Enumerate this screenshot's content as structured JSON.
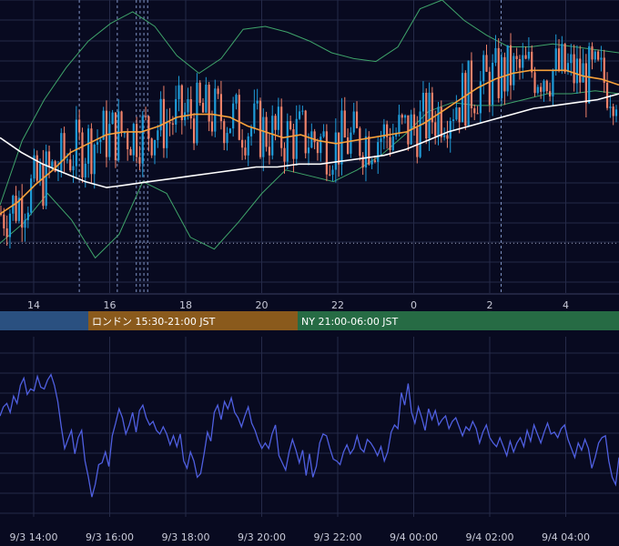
{
  "chart_data": [
    {
      "type": "line",
      "subtype": "candlestick",
      "title": "",
      "x_axis_ticks": [
        "14",
        "16",
        "18",
        "20",
        "22",
        "0",
        "2",
        "4"
      ],
      "grid": true,
      "colors": {
        "up": "#1e9bd8",
        "down": "#f0826a",
        "ma_short": "#f7a13a",
        "ma_long": "#ffffff",
        "bollinger": "#3fa46a",
        "background": "#080a20",
        "grid": "#252a48",
        "event_marker": "#7f93c4"
      },
      "series": [
        {
          "role": "ma_short",
          "values": [
            0.27,
            0.31,
            0.37,
            0.42,
            0.48,
            0.51,
            0.54,
            0.55,
            0.55,
            0.57,
            0.6,
            0.61,
            0.61,
            0.6,
            0.57,
            0.55,
            0.53,
            0.54,
            0.52,
            0.51,
            0.52,
            0.53,
            0.54,
            0.55,
            0.58,
            0.62,
            0.66,
            0.7,
            0.73,
            0.75,
            0.76,
            0.76,
            0.76,
            0.74,
            0.73,
            0.71
          ]
        },
        {
          "role": "ma_long",
          "values": [
            0.53,
            0.48,
            0.44,
            0.41,
            0.38,
            0.36,
            0.37,
            0.38,
            0.39,
            0.4,
            0.41,
            0.42,
            0.43,
            0.43,
            0.44,
            0.44,
            0.45,
            0.46,
            0.47,
            0.49,
            0.52,
            0.55,
            0.57,
            0.59,
            0.61,
            0.63,
            0.64,
            0.65,
            0.66,
            0.68
          ]
        },
        {
          "role": "bollinger_upper",
          "values": [
            0.3,
            0.52,
            0.66,
            0.77,
            0.86,
            0.92,
            0.96,
            0.91,
            0.81,
            0.75,
            0.8,
            0.9,
            0.91,
            0.89,
            0.86,
            0.82,
            0.8,
            0.79,
            0.84,
            0.97,
            1.0,
            0.93,
            0.88,
            0.84,
            0.84,
            0.85,
            0.84,
            0.83,
            0.82
          ]
        },
        {
          "role": "bollinger_lower",
          "values": [
            0.17,
            0.24,
            0.34,
            0.25,
            0.12,
            0.2,
            0.38,
            0.34,
            0.19,
            0.15,
            0.24,
            0.34,
            0.42,
            0.4,
            0.38,
            0.42,
            0.47,
            0.54,
            0.62,
            0.65,
            0.64,
            0.64,
            0.66,
            0.68,
            0.68,
            0.69,
            0.68
          ]
        }
      ],
      "reference_line": 0.17,
      "event_markers_hours": [
        15.2,
        16.2,
        16.7,
        16.8,
        16.9,
        17.0,
        2.3
      ]
    },
    {
      "type": "line",
      "title": "",
      "x_axis_ticks": [
        "9/3 14:00",
        "9/3 16:00",
        "9/3 18:00",
        "9/3 20:00",
        "9/3 22:00",
        "9/4 00:00",
        "9/4 02:00",
        "9/4 04:00"
      ],
      "grid": true,
      "series": [
        {
          "color": "#4f5fe0",
          "values": [
            0.56,
            0.61,
            0.63,
            0.58,
            0.67,
            0.63,
            0.73,
            0.77,
            0.68,
            0.71,
            0.7,
            0.78,
            0.72,
            0.71,
            0.76,
            0.79,
            0.73,
            0.64,
            0.5,
            0.38,
            0.43,
            0.48,
            0.35,
            0.44,
            0.48,
            0.31,
            0.22,
            0.11,
            0.18,
            0.29,
            0.3,
            0.36,
            0.28,
            0.45,
            0.52,
            0.6,
            0.55,
            0.46,
            0.51,
            0.58,
            0.47,
            0.59,
            0.62,
            0.55,
            0.51,
            0.53,
            0.48,
            0.46,
            0.5,
            0.46,
            0.4,
            0.45,
            0.39,
            0.46,
            0.31,
            0.27,
            0.36,
            0.31,
            0.22,
            0.24,
            0.35,
            0.47,
            0.42,
            0.58,
            0.62,
            0.54,
            0.64,
            0.6,
            0.66,
            0.58,
            0.55,
            0.5,
            0.56,
            0.61,
            0.52,
            0.48,
            0.42,
            0.38,
            0.41,
            0.38,
            0.46,
            0.51,
            0.34,
            0.3,
            0.26,
            0.36,
            0.43,
            0.37,
            0.3,
            0.37,
            0.23,
            0.35,
            0.22,
            0.28,
            0.41,
            0.46,
            0.45,
            0.38,
            0.32,
            0.31,
            0.29,
            0.36,
            0.4,
            0.35,
            0.38,
            0.45,
            0.38,
            0.36,
            0.43,
            0.41,
            0.38,
            0.34,
            0.39,
            0.31,
            0.36,
            0.47,
            0.51,
            0.49,
            0.69,
            0.62,
            0.74,
            0.58,
            0.52,
            0.61,
            0.55,
            0.48,
            0.6,
            0.54,
            0.59,
            0.51,
            0.54,
            0.56,
            0.49,
            0.53,
            0.55,
            0.5,
            0.45,
            0.5,
            0.48,
            0.53,
            0.49,
            0.41,
            0.47,
            0.51,
            0.44,
            0.41,
            0.39,
            0.44,
            0.39,
            0.34,
            0.42,
            0.36,
            0.41,
            0.44,
            0.39,
            0.48,
            0.42,
            0.51,
            0.46,
            0.41,
            0.47,
            0.52,
            0.46,
            0.47,
            0.44,
            0.49,
            0.51,
            0.43,
            0.38,
            0.33,
            0.41,
            0.37,
            0.43,
            0.38,
            0.27,
            0.33,
            0.41,
            0.44,
            0.45,
            0.31,
            0.22,
            0.18,
            0.33
          ]
        }
      ]
    }
  ],
  "sessions": [
    {
      "label": "",
      "color": "#2a5080"
    },
    {
      "label": "ロンドン 15:30-21:00 JST",
      "color": "#8a5a1c"
    },
    {
      "label": "NY 21:00-06:00 JST",
      "color": "#266b44"
    }
  ]
}
